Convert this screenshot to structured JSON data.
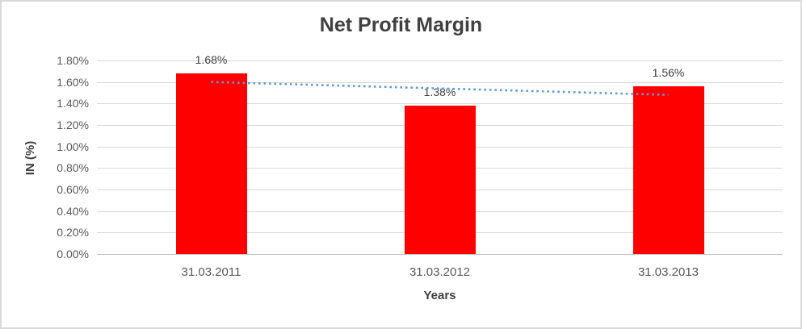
{
  "chart_data": {
    "type": "bar",
    "title": "Net Profit Margin",
    "xlabel": "Years",
    "ylabel": "IN (%)",
    "categories": [
      "31.03.2011",
      "31.03.2012",
      "31.03.2013"
    ],
    "values": [
      1.68,
      1.38,
      1.56
    ],
    "data_labels": [
      "1.68%",
      "1.38%",
      "1.56%"
    ],
    "y_ticks": [
      "1.80%",
      "1.60%",
      "1.40%",
      "1.20%",
      "1.00%",
      "0.80%",
      "0.60%",
      "0.40%",
      "0.20%",
      "0.00%"
    ],
    "y_tick_values": [
      1.8,
      1.6,
      1.4,
      1.2,
      1.0,
      0.8,
      0.6,
      0.4,
      0.2,
      0.0
    ],
    "ylim": [
      0,
      1.8
    ],
    "grid": true,
    "legend": "none",
    "bar_color": "#FF0000",
    "gridline_color": "#D9D9D9",
    "axis_line_color": "#C0C0C0",
    "title_color": "#404040",
    "tick_label_color": "#595959",
    "data_label_color": "#404040",
    "trendline": {
      "type": "linear",
      "style": "dotted",
      "color": "#5B9BD5",
      "start_value": 1.6,
      "end_value": 1.48
    }
  }
}
